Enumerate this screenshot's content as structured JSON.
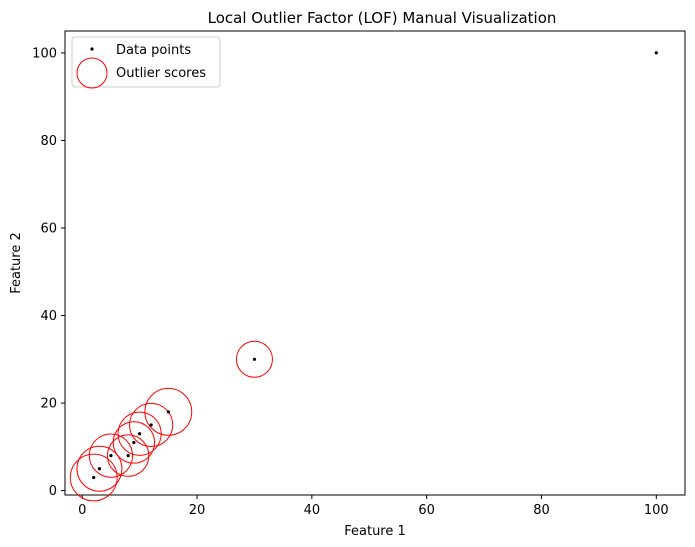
{
  "chart_data": {
    "type": "scatter",
    "title": "Local Outlier Factor (LOF) Manual Visualization",
    "xlabel": "Feature 1",
    "ylabel": "Feature 2",
    "xlim": [
      -3,
      105
    ],
    "ylim": [
      -1,
      105
    ],
    "xticks": [
      0,
      20,
      40,
      60,
      80,
      100
    ],
    "yticks": [
      0,
      20,
      40,
      60,
      80,
      100
    ],
    "grid": false,
    "legend_position": "top-left",
    "series": [
      {
        "name": "Data points",
        "marker": "dot",
        "color": "#000000",
        "points": [
          {
            "x": 2,
            "y": 3
          },
          {
            "x": 3,
            "y": 5
          },
          {
            "x": 5,
            "y": 8
          },
          {
            "x": 8,
            "y": 8
          },
          {
            "x": 9,
            "y": 11
          },
          {
            "x": 10,
            "y": 13
          },
          {
            "x": 12,
            "y": 15
          },
          {
            "x": 15,
            "y": 18
          },
          {
            "x": 30,
            "y": 30
          },
          {
            "x": 100,
            "y": 100
          }
        ]
      },
      {
        "name": "Outlier scores",
        "marker": "open-circle",
        "color": "#ff0000",
        "points": [
          {
            "x": 2,
            "y": 3,
            "score": 1.3
          },
          {
            "x": 3,
            "y": 5,
            "score": 1.25
          },
          {
            "x": 5,
            "y": 8,
            "score": 1.2
          },
          {
            "x": 8,
            "y": 8,
            "score": 1.15
          },
          {
            "x": 9,
            "y": 11,
            "score": 1.15
          },
          {
            "x": 10,
            "y": 13,
            "score": 1.2
          },
          {
            "x": 12,
            "y": 15,
            "score": 1.2
          },
          {
            "x": 15,
            "y": 18,
            "score": 1.3
          },
          {
            "x": 30,
            "y": 30,
            "score": 1.0
          }
        ]
      }
    ]
  }
}
